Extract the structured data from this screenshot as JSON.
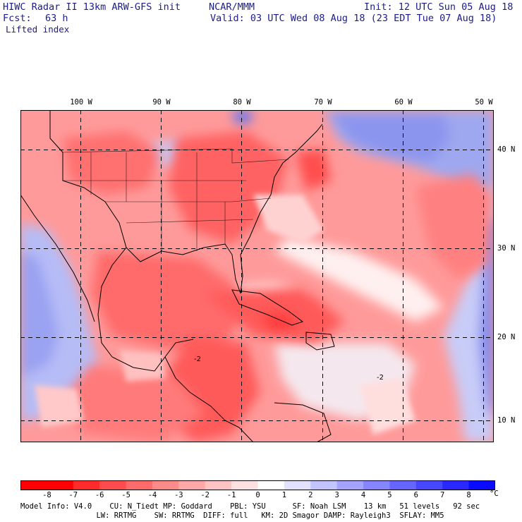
{
  "header": {
    "model_title": "HIWC Radar II 13km ARW-GFS init",
    "org": "NCAR/MMM",
    "init": "Init: 12 UTC Sun 05 Aug 18",
    "fcst_label": "Fcst:",
    "fcst_value": "63 h",
    "valid": "Valid: 03 UTC Wed 08 Aug 18 (23 EDT Tue 07 Aug 18)",
    "field": "Lifted index"
  },
  "map": {
    "lon_labels": [
      "100 W",
      "90 W",
      "80 W",
      "70 W",
      "60 W",
      "50 W"
    ],
    "lat_labels": [
      "40 N",
      "30 N",
      "20 N",
      "10 N"
    ],
    "contour_labels": [
      "-2",
      "-2"
    ]
  },
  "colorbar": {
    "unit": "°C",
    "labels": [
      "-8",
      "-7",
      "-6",
      "-5",
      "-4",
      "-3",
      "-2",
      "-1",
      "0",
      "1",
      "2",
      "3",
      "4",
      "5",
      "6",
      "7",
      "8"
    ],
    "colors": [
      "#ff0000",
      "#ff2a2a",
      "#ff4c4c",
      "#ff6b6b",
      "#ff8a8a",
      "#ffa8a8",
      "#ffc3c3",
      "#ffe0e0",
      "#ffffff",
      "#e2e2ff",
      "#c3c3ff",
      "#a4a4ff",
      "#8585ff",
      "#6666ff",
      "#4747ff",
      "#2929ff",
      "#0a0aff"
    ]
  },
  "footer": {
    "line1": "Model Info: V4.0    CU: N_Tiedt MP: Goddard    PBL: YSU      SF: Noah LSM    13 km   51 levels   92 sec",
    "line2": "                 LW: RRTMG    SW: RRTMG  DIFF: full   KM: 2D Smagor DAMP: Rayleigh3  SFLAY: MM5"
  }
}
